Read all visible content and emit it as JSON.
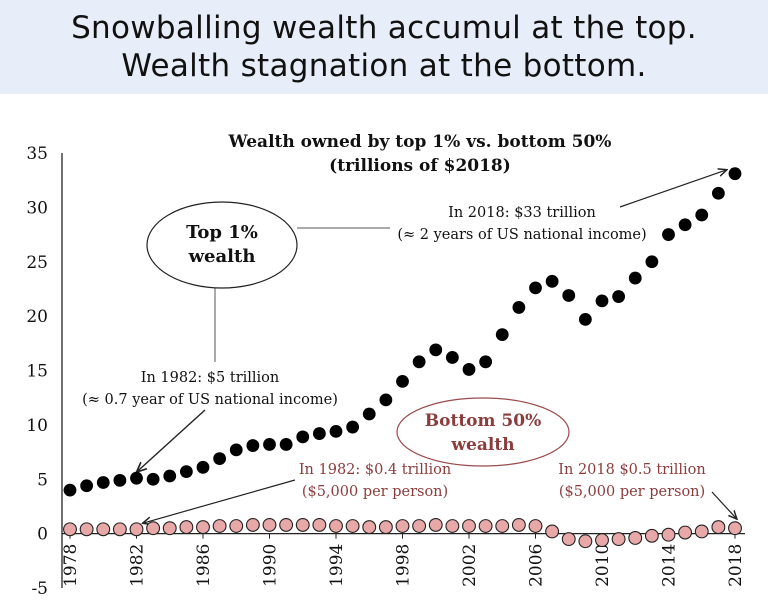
{
  "slide": {
    "headline_line1": "Snowballing wealth accumul at the top.",
    "headline_line2": "Wealth stagnation at the bottom."
  },
  "chart_data": {
    "type": "scatter",
    "title_line1": "Wealth owned by top 1% vs. bottom 50%",
    "title_line2": "(trillions of $2018)",
    "xlabel": "",
    "ylabel": "",
    "ylim": [
      -5,
      35
    ],
    "yticks": [
      "35",
      "30",
      "25",
      "20",
      "15",
      "10",
      "5",
      "0",
      "-5"
    ],
    "xticks": [
      "1978",
      "1982",
      "1986",
      "1990",
      "1994",
      "1998",
      "2002",
      "2006",
      "2010",
      "2014",
      "2018"
    ],
    "grid": false,
    "x": [
      1978,
      1979,
      1980,
      1981,
      1982,
      1983,
      1984,
      1985,
      1986,
      1987,
      1988,
      1989,
      1990,
      1991,
      1992,
      1993,
      1994,
      1995,
      1996,
      1997,
      1998,
      1999,
      2000,
      2001,
      2002,
      2003,
      2004,
      2005,
      2006,
      2007,
      2008,
      2009,
      2010,
      2011,
      2012,
      2013,
      2014,
      2015,
      2016,
      2017,
      2018
    ],
    "series": [
      {
        "values": [
          4.0,
          4.4,
          4.7,
          4.9,
          5.1,
          5.0,
          5.3,
          5.7,
          6.1,
          6.9,
          7.7,
          8.1,
          8.2,
          8.2,
          8.9,
          9.2,
          9.4,
          9.8,
          11.0,
          12.3,
          14.0,
          15.8,
          16.9,
          16.2,
          15.1,
          15.8,
          18.3,
          20.8,
          22.6,
          23.2,
          21.9,
          19.7,
          21.4,
          21.8,
          23.5,
          25.0,
          27.5,
          28.4,
          29.3,
          31.3,
          33.1
        ],
        "color": "#000000"
      },
      {
        "values": [
          0.4,
          0.4,
          0.4,
          0.4,
          0.4,
          0.5,
          0.5,
          0.6,
          0.6,
          0.7,
          0.7,
          0.8,
          0.8,
          0.8,
          0.8,
          0.8,
          0.7,
          0.7,
          0.6,
          0.6,
          0.7,
          0.7,
          0.8,
          0.7,
          0.7,
          0.7,
          0.7,
          0.8,
          0.7,
          0.2,
          -0.5,
          -0.7,
          -0.6,
          -0.5,
          -0.4,
          -0.2,
          -0.1,
          0.1,
          0.2,
          0.6,
          0.5
        ],
        "color": "#e8a8a8"
      }
    ],
    "annotations": {
      "top_label_line1": "Top 1%",
      "top_label_line2": "wealth",
      "bottom_label_line1": "Bottom 50%",
      "bottom_label_line2": "wealth",
      "top2018_line1": "In 2018: $33 trillion",
      "top2018_line2": "(≈ 2 years of US national income)",
      "top1982_line1": "In 1982: $5 trillion",
      "top1982_line2": "(≈ 0.7 year of US national income)",
      "bot1982_line1": "In 1982: $0.4 trillion",
      "bot1982_line2": "($5,000 per person)",
      "bot2018_line1": "In 2018 $0.5 trillion",
      "bot2018_line2": "($5,000 per person)"
    }
  }
}
